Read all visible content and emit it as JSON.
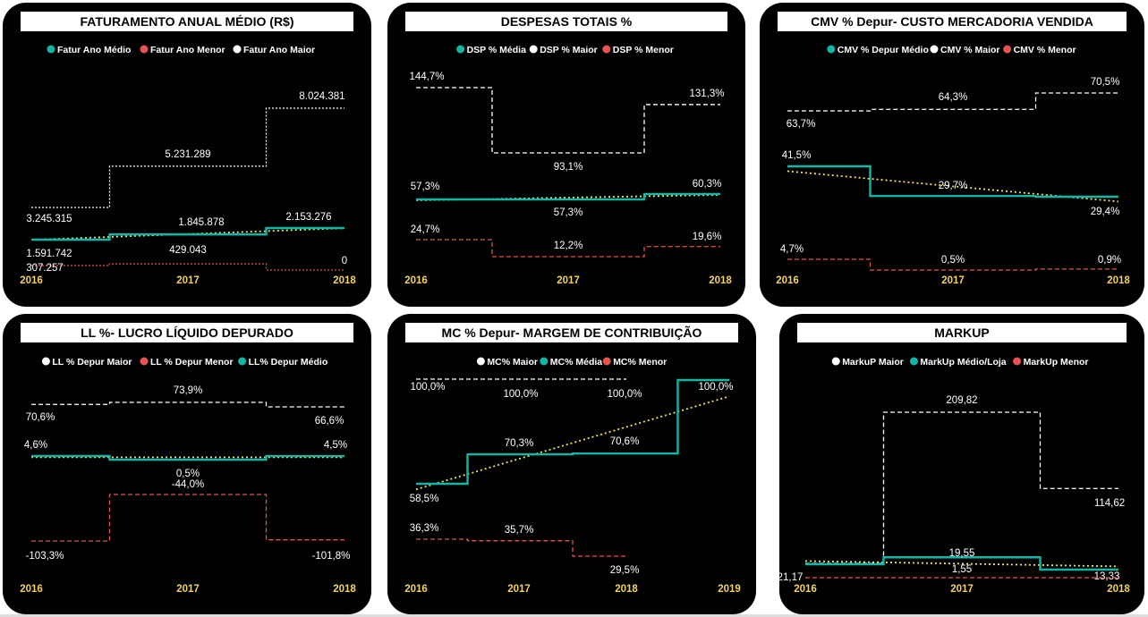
{
  "colors": {
    "teal": "#13b5a6",
    "red": "#e8524f",
    "white": "#ffffff",
    "yellow": "#f2e15c",
    "year": "#f2d35c"
  },
  "chart_data": [
    {
      "id": "faturamento",
      "type": "line",
      "title": "FATURAMENTO ANUAL MÉDIO (R$)",
      "categories": [
        "2016",
        "2017",
        "2018"
      ],
      "series": [
        {
          "name": "Fatur Ano Médio",
          "color": "teal",
          "style": "solid",
          "values": [
            1591742,
            1845878,
            2153276
          ],
          "labels": [
            "1.591.742",
            "1.845.878",
            "2.153.276"
          ]
        },
        {
          "name": "Fatur Ano Menor",
          "color": "red",
          "style": "dotted",
          "values": [
            307257,
            429043,
            0
          ],
          "labels": [
            "307.257",
            "429.043",
            "0"
          ]
        },
        {
          "name": "Fatur Ano Maior",
          "color": "white",
          "style": "dotted",
          "values": [
            3245315,
            5231289,
            8024381
          ],
          "labels": [
            "3.245.315",
            "5.231.289",
            "8.024.381"
          ]
        }
      ]
    },
    {
      "id": "despesas",
      "type": "line",
      "title": "DESPESAS TOTAIS %",
      "categories": [
        "2016",
        "2017",
        "2018"
      ],
      "series": [
        {
          "name": "DSP % Média",
          "color": "teal",
          "style": "solid",
          "values": [
            57.3,
            57.3,
            60.3
          ],
          "labels": [
            "57,3%",
            "57,3%",
            "60,3%"
          ]
        },
        {
          "name": "DSP % Maior",
          "color": "white",
          "style": "dashed",
          "values": [
            144.7,
            93.1,
            131.3
          ],
          "labels": [
            "144,7%",
            "93,1%",
            "131,3%"
          ]
        },
        {
          "name": "DSP % Menor",
          "color": "red",
          "style": "dashed",
          "values": [
            24.7,
            12.2,
            19.6
          ],
          "labels": [
            "24,7%",
            "12,2%",
            "19,6%"
          ]
        }
      ]
    },
    {
      "id": "cmv",
      "type": "line",
      "title": "CMV % Depur- CUSTO MERCADORIA VENDIDA",
      "categories": [
        "2016",
        "2017",
        "2018"
      ],
      "series": [
        {
          "name": "CMV % Depur Médio",
          "color": "teal",
          "style": "solid",
          "values": [
            41.5,
            29.7,
            29.4
          ],
          "labels": [
            "41,5%",
            "29,7%",
            "29,4%"
          ]
        },
        {
          "name": "CMV % Maior",
          "color": "white",
          "style": "dashed",
          "values": [
            63.7,
            64.3,
            70.5
          ],
          "labels": [
            "63,7%",
            "64,3%",
            "70,5%"
          ]
        },
        {
          "name": "CMV % Menor",
          "color": "red",
          "style": "dashed",
          "values": [
            4.7,
            0.5,
            0.9
          ],
          "labels": [
            "4,7%",
            "0,5%",
            "0,9%"
          ]
        }
      ]
    },
    {
      "id": "ll",
      "type": "line",
      "title": "LL %- LUCRO LÍQUIDO DEPURADO",
      "categories": [
        "2016",
        "2017",
        "2018"
      ],
      "series": [
        {
          "name": "LL % Depur Maior",
          "color": "white",
          "style": "dashed",
          "values": [
            70.6,
            73.9,
            66.6
          ],
          "labels": [
            "70,6%",
            "73,9%",
            "66,6%"
          ]
        },
        {
          "name": "LL % Depur Menor",
          "color": "red",
          "style": "dashed",
          "values": [
            -103.3,
            -44.0,
            -101.8
          ],
          "labels": [
            "-103,3%",
            "-44,0%",
            "-101,8%"
          ]
        },
        {
          "name": "LL% Depur Médio",
          "color": "teal",
          "style": "solid",
          "values": [
            4.6,
            0.5,
            4.5
          ],
          "labels": [
            "4,6%",
            "0,5%",
            "4,5%"
          ]
        }
      ]
    },
    {
      "id": "mc",
      "type": "line",
      "title": "MC % Depur- MARGEM DE CONTRIBUIÇÃO",
      "categories": [
        "2016",
        "2017",
        "2018",
        "2019"
      ],
      "series": [
        {
          "name": "MC% Maior",
          "color": "white",
          "style": "dashed",
          "values": [
            100.0,
            100.0,
            100.0,
            null
          ],
          "labels": [
            "100,0%",
            "100,0%",
            "100,0%",
            ""
          ]
        },
        {
          "name": "MC% Média",
          "color": "teal",
          "style": "solid",
          "values": [
            58.5,
            70.3,
            70.6,
            100.0
          ],
          "labels": [
            "58,5%",
            "70,3%",
            "70,6%",
            "100,0%"
          ]
        },
        {
          "name": "MC% Menor",
          "color": "red",
          "style": "dashed",
          "values": [
            36.3,
            35.7,
            29.5,
            null
          ],
          "labels": [
            "36,3%",
            "35,7%",
            "29,5%",
            ""
          ]
        }
      ]
    },
    {
      "id": "markup",
      "type": "line",
      "title": "MARKUP",
      "categories": [
        "2016",
        "2017",
        "2018"
      ],
      "series": [
        {
          "name": "MarkuP Maior",
          "color": "white",
          "style": "dashed",
          "values": [
            21.17,
            209.82,
            114.62
          ],
          "labels": [
            "21,17",
            "209,82",
            "114,62"
          ]
        },
        {
          "name": "MarkUp Médio/Loja",
          "color": "teal",
          "style": "solid",
          "values": [
            21.17,
            19.55,
            13.33
          ],
          "labels": [
            "",
            "19,55",
            "13,33"
          ]
        },
        {
          "name": "MarkUp Menor",
          "color": "red",
          "style": "dashed",
          "values": [
            1.55,
            1.55,
            1.55
          ],
          "labels": [
            "",
            "1,55",
            ""
          ]
        }
      ]
    }
  ]
}
